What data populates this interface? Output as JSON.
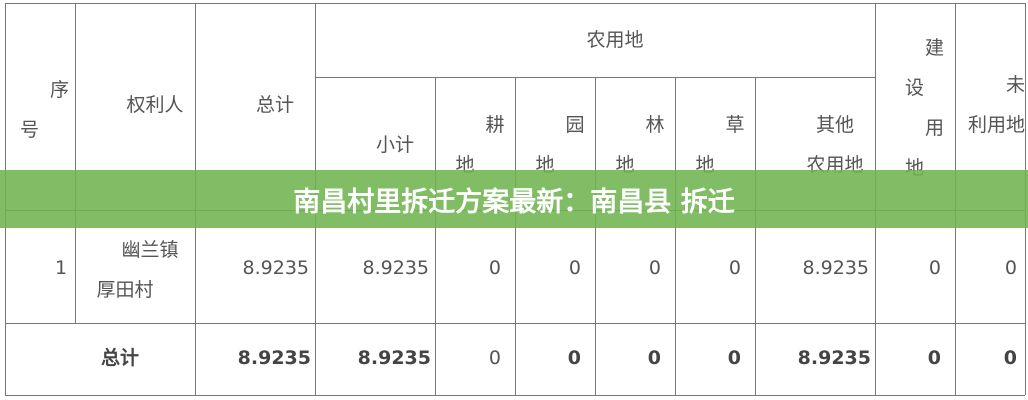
{
  "banner_title": "南昌村里拆迁方案最新：南昌县 拆迁",
  "table": {
    "headers": {
      "seq_1": "序",
      "seq_2": "号",
      "owner": "权利人",
      "total": "总计",
      "agri_group": "农用地",
      "subtotal": "小计",
      "arable_1": "耕",
      "arable_2": "地",
      "garden_1": "园",
      "garden_2": "地",
      "forest_1": "林",
      "forest_2": "地",
      "grass_1": "草",
      "grass_2": "地",
      "other_1": "其他",
      "other_2": "农用地",
      "construct_1": "建",
      "construct_2": "设",
      "construct_3": "用",
      "construct_4": "地",
      "unused_1": "未",
      "unused_2": "利用地"
    },
    "rows": [
      {
        "seq": "1",
        "owner_1": "幽兰镇",
        "owner_2": "厚田村",
        "total": "8.9235",
        "subtotal": "8.9235",
        "arable": "0",
        "garden": "0",
        "forest": "0",
        "grass": "0",
        "other": "8.9235",
        "construct": "0",
        "unused": "0"
      }
    ],
    "sum_row": {
      "label": "总计",
      "total": "8.9235",
      "subtotal": "8.9235",
      "arable": "0",
      "garden": "0",
      "forest": "0",
      "grass": "0",
      "other": "8.9235",
      "construct": "0",
      "unused": "0"
    }
  }
}
